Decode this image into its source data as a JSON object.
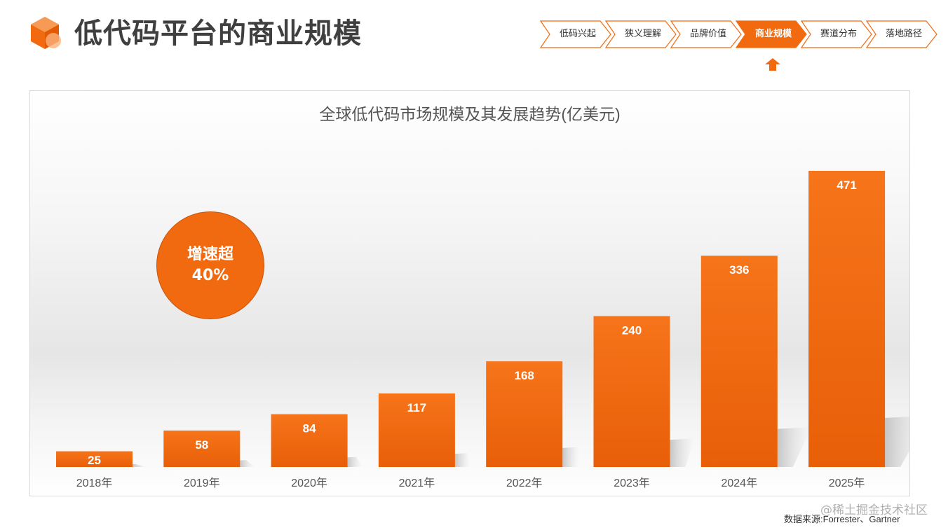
{
  "header": {
    "title": "低代码平台的商业规模",
    "logo_icon": "cube-icon"
  },
  "nav": {
    "steps": [
      {
        "label": "低码兴起"
      },
      {
        "label": "狭义理解"
      },
      {
        "label": "品牌价值"
      },
      {
        "label": "商业规模"
      },
      {
        "label": "赛道分布"
      },
      {
        "label": "落地路径"
      }
    ],
    "active_index": 3,
    "accent": "#f26a0f"
  },
  "badge": {
    "line1": "增速超",
    "line2": "40%"
  },
  "chart_data": {
    "type": "bar",
    "title": "全球低代码市场规模及其发展趋势(亿美元)",
    "categories": [
      "2018年",
      "2019年",
      "2020年",
      "2021年",
      "2022年",
      "2023年",
      "2024年",
      "2025年"
    ],
    "values": [
      25,
      58,
      84,
      117,
      168,
      240,
      336,
      471
    ],
    "xlabel": "",
    "ylabel": "",
    "ylim": [
      0,
      520
    ],
    "grid": false,
    "bar_color": "#f26a0f"
  },
  "footer": {
    "source": "数据来源:Forrester、Gartner",
    "watermark": "@稀土掘金技术社区"
  }
}
